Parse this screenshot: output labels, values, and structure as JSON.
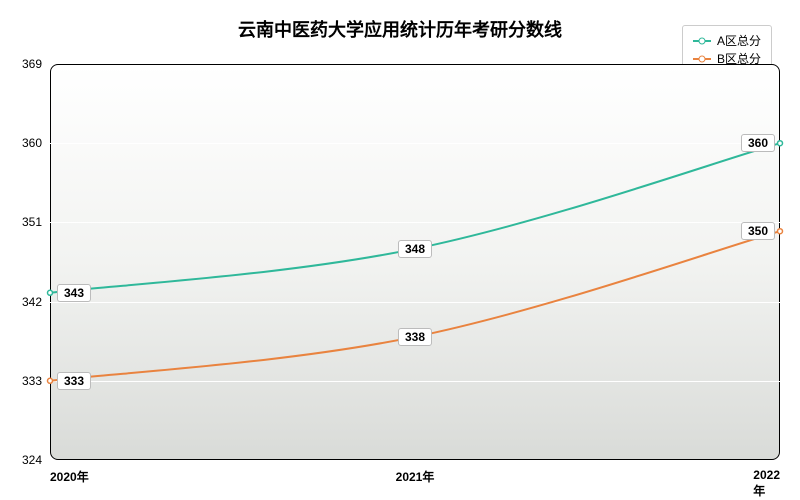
{
  "chart": {
    "type": "line",
    "title": "云南中医药大学应用统计历年考研分数线",
    "title_fontsize": 18,
    "background_color": "#ffffff",
    "plot_fill_top": "#ffffff",
    "plot_fill_bottom": "#d9dbd8",
    "border_color": "#000000",
    "border_radius": 8,
    "grid_color": "#ffffff",
    "x": {
      "categories": [
        "2020年",
        "2021年",
        "2022年"
      ],
      "label_fontsize": 12,
      "label_weight": "bold"
    },
    "y": {
      "min": 324,
      "max": 369,
      "ticks": [
        324,
        333,
        342,
        351,
        360,
        369
      ],
      "tick_step": 9,
      "label_fontsize": 12
    },
    "series": [
      {
        "name": "A区总分",
        "color": "#2fb89a",
        "line_width": 2,
        "marker": "circle",
        "marker_size": 5,
        "values": [
          343,
          348,
          360
        ],
        "labels": [
          "343",
          "348",
          "360"
        ]
      },
      {
        "name": "B区总分",
        "color": "#e9833f",
        "line_width": 2,
        "marker": "circle",
        "marker_size": 5,
        "values": [
          333,
          338,
          350
        ],
        "labels": [
          "333",
          "338",
          "350"
        ]
      }
    ],
    "legend": {
      "position": "top-right",
      "border_color": "#cccccc",
      "background": "#ffffff",
      "fontsize": 12
    },
    "data_label": {
      "fontsize": 12,
      "weight": "bold",
      "background": "#ffffff",
      "border_color": "#bbbbbb"
    }
  }
}
